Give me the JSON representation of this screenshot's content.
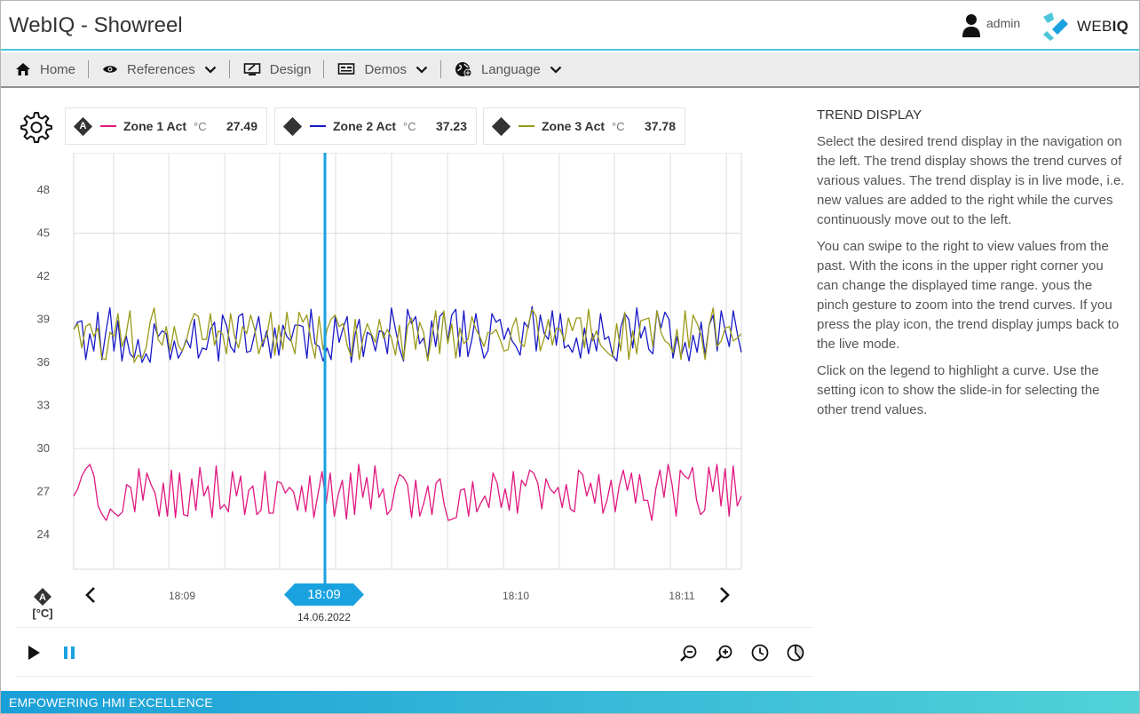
{
  "app": {
    "title": "WebIQ - Showreel"
  },
  "user": {
    "name": "admin",
    "icon": "user-icon"
  },
  "logo": {
    "text_light": "WEB",
    "text_bold": "IQ"
  },
  "nav": {
    "items": [
      {
        "label": "Home",
        "icon": "home-icon",
        "has_dropdown": false
      },
      {
        "label": "References",
        "icon": "eye-icon",
        "has_dropdown": true
      },
      {
        "label": "Design",
        "icon": "design-icon",
        "has_dropdown": false
      },
      {
        "label": "Demos",
        "icon": "monitor-icon",
        "has_dropdown": true
      },
      {
        "label": "Language",
        "icon": "globe-icon",
        "has_dropdown": true
      }
    ]
  },
  "legend": [
    {
      "badge": "A",
      "name": "Zone 1 Act",
      "unit": "°C",
      "value": "27.49",
      "color": "#e0187f"
    },
    {
      "badge": "",
      "name": "Zone 2 Act",
      "unit": "°C",
      "value": "37.23",
      "color": "#1a1ac8"
    },
    {
      "badge": "",
      "name": "Zone 3 Act",
      "unit": "°C",
      "value": "37.78",
      "color": "#9a9a1a"
    }
  ],
  "axis": {
    "badge": "A",
    "unit": "[°C]"
  },
  "cursor": {
    "time": "18:09",
    "date": "14.06.2022",
    "color": "#1aa2e0"
  },
  "chart_data": {
    "type": "line",
    "y_ticks": [
      "48",
      "45",
      "42",
      "39",
      "36",
      "33",
      "30",
      "27",
      "24"
    ],
    "ylim": [
      21.6,
      50.6
    ],
    "x_ticks": [
      "18:09",
      "18:10",
      "18:11"
    ],
    "grid": true,
    "series": [
      {
        "name": "Zone 1 Act",
        "color": "#e0187f",
        "values": [
          26.7,
          27.2,
          28.1,
          28.6,
          28.9,
          28.1,
          26.0,
          25.4,
          25.0,
          25.8,
          25.5,
          25.3,
          25.6,
          27.5,
          27.3,
          25.6,
          28.6,
          26.4,
          28.3,
          27.5,
          26.9,
          25.3,
          27.6,
          25.3,
          28.5,
          25.2,
          28.3,
          25.4,
          25.3,
          27.9,
          25.7,
          28.7,
          26.7,
          27.4,
          25.2,
          28.8,
          25.8,
          26.1,
          25.6,
          28.4,
          26.7,
          28.1,
          25.4,
          27.1,
          27.4,
          25.4,
          25.7,
          28.4,
          25.5,
          25.5,
          27.7,
          27.6,
          26.9,
          27.3,
          27.0,
          25.7,
          27.4,
          25.6,
          28.1,
          25.2,
          26.8,
          28.4,
          26.2,
          28.3,
          25.3,
          26.8,
          27.8,
          25.1,
          28.3,
          25.4,
          28.9,
          26.6,
          28.0,
          25.8,
          28.8,
          26.6,
          27.2,
          25.4,
          25.8,
          27.3,
          28.2,
          28.0,
          27.5,
          25.2,
          27.8,
          25.3,
          26.2,
          27.4,
          25.4,
          27.6,
          27.9,
          26.1,
          25.0,
          25.1,
          25.2,
          27.1,
          27.2,
          25.3,
          27.7,
          25.6,
          26.2,
          26.7,
          25.9,
          28.3,
          27.6,
          25.9,
          27.2,
          25.7,
          28.4,
          25.5,
          27.8,
          27.4,
          28.5,
          28.3,
          27.6,
          25.8,
          27.9,
          27.2,
          26.9,
          27.3,
          25.9,
          27.5,
          25.8,
          25.6,
          28.5,
          28.2,
          26.7,
          27.6,
          26.2,
          28.2,
          25.5,
          26.4,
          27.8,
          25.6,
          27.4,
          28.5,
          27.1,
          28.3,
          26.2,
          28.2,
          26.4,
          26.4,
          25.0,
          27.2,
          28.5,
          26.6,
          28.9,
          27.5,
          25.3,
          28.5,
          28.1,
          27.9,
          28.7,
          26.4,
          25.4,
          25.7,
          28.7,
          27.0,
          28.9,
          26.0,
          28.6,
          25.3,
          28.8,
          26.0,
          26.7
        ]
      },
      {
        "name": "Zone 2 Act",
        "color": "#1a1ac8",
        "values": [
          38.3,
          38.8,
          38.9,
          36.2,
          38.0,
          36.8,
          39.5,
          36.2,
          38.1,
          39.8,
          36.8,
          38.9,
          36.1,
          37.9,
          36.6,
          36.3,
          37.6,
          36.0,
          36.6,
          36.0,
          38.7,
          37.8,
          38.2,
          38.0,
          36.2,
          37.5,
          36.3,
          36.8,
          37.6,
          37.0,
          39.0,
          36.3,
          37.0,
          36.9,
          38.3,
          38.8,
          36.1,
          39.3,
          38.6,
          37.1,
          36.7,
          39.2,
          39.4,
          36.7,
          36.8,
          38.0,
          39.2,
          37.1,
          38.2,
          36.3,
          38.4,
          36.5,
          38.6,
          37.8,
          37.5,
          38.6,
          38.6,
          38.5,
          36.3,
          39.7,
          37.3,
          37.1,
          36.1,
          37.0,
          36.2,
          39.2,
          37.4,
          38.4,
          39.2,
          36.0,
          38.0,
          39.0,
          36.4,
          38.1,
          37.9,
          36.8,
          38.2,
          38.1,
          36.6,
          39.8,
          38.3,
          37.0,
          36.1,
          39.7,
          38.7,
          39.2,
          37.3,
          37.7,
          36.3,
          38.9,
          37.1,
          39.2,
          39.5,
          37.5,
          39.3,
          39.7,
          36.4,
          39.6,
          36.4,
          37.6,
          39.4,
          37.6,
          36.3,
          36.8,
          39.4,
          38.8,
          39.0,
          37.6,
          38.4,
          37.5,
          37.1,
          36.5,
          38.8,
          38.4,
          39.9,
          36.8,
          39.3,
          38.0,
          37.6,
          39.6,
          37.2,
          39.4,
          37.0,
          37.2,
          36.7,
          37.7,
          36.3,
          38.4,
          36.6,
          38.0,
          36.8,
          39.4,
          37.6,
          37.8,
          36.5,
          36.1,
          38.4,
          39.4,
          39.0,
          37.0,
          39.8,
          37.7,
          38.5,
          36.9,
          36.6,
          39.6,
          38.4,
          39.5,
          39.0,
          36.3,
          37.8,
          36.4,
          37.4,
          36.1,
          37.9,
          36.7,
          38.8,
          36.5,
          38.6,
          39.3,
          36.8,
          39.6,
          38.2,
          37.1,
          39.6,
          38.0,
          36.7
        ]
      },
      {
        "name": "Zone 3 Act",
        "color": "#9a9a1a",
        "values": [
          38.3,
          38.7,
          37.0,
          38.5,
          38.7,
          37.8,
          38.4,
          36.3,
          36.2,
          38.1,
          37.8,
          39.4,
          37.1,
          37.9,
          39.6,
          36.0,
          36.5,
          36.3,
          37.0,
          38.8,
          39.8,
          37.6,
          37.2,
          38.5,
          36.8,
          38.5,
          37.2,
          36.8,
          37.5,
          38.7,
          39.4,
          39.2,
          37.6,
          37.6,
          39.4,
          37.2,
          38.2,
          38.0,
          36.6,
          39.4,
          37.8,
          37.0,
          38.5,
          38.0,
          39.3,
          38.3,
          36.6,
          37.5,
          37.8,
          39.5,
          36.5,
          38.6,
          36.9,
          39.5,
          37.6,
          36.6,
          39.5,
          38.8,
          39.3,
          37.5,
          36.3,
          39.2,
          36.9,
          38.3,
          39.0,
          39.3,
          38.5,
          38.7,
          37.2,
          36.4,
          39.0,
          36.2,
          37.8,
          38.7,
          38.0,
          37.4,
          39.0,
          37.7,
          38.3,
          37.7,
          36.5,
          38.6,
          36.2,
          38.5,
          39.1,
          36.9,
          38.8,
          38.1,
          36.1,
          37.7,
          39.6,
          36.6,
          39.6,
          37.3,
          38.7,
          36.3,
          38.4,
          37.3,
          37.6,
          39.2,
          38.3,
          37.8,
          37.1,
          38.1,
          38.0,
          38.3,
          37.6,
          36.8,
          36.9,
          38.4,
          39.1,
          37.4,
          37.1,
          38.6,
          39.7,
          39.2,
          36.8,
          37.7,
          39.0,
          37.2,
          38.4,
          38.3,
          37.5,
          39.1,
          38.2,
          39.1,
          39.1,
          37.0,
          39.7,
          37.5,
          38.2,
          37.2,
          36.9,
          36.6,
          36.4,
          38.7,
          36.8,
          39.5,
          36.2,
          38.2,
          36.6,
          38.9,
          39.0,
          39.1,
          37.1,
          39.6,
          38.1,
          37.5,
          37.3,
          36.7,
          38.3,
          36.2,
          39.6,
          37.0,
          39.3,
          38.7,
          37.9,
          36.2,
          38.6,
          39.8,
          37.1,
          37.5,
          38.4,
          38.5,
          37.5,
          37.7,
          38.0
        ]
      }
    ]
  },
  "info": {
    "title": "TREND DISPLAY",
    "p1": "Select the desired trend display in the navigation on the left. The trend display shows the trend curves of various values. The trend display is in live mode, i.e. new values are added to the right while the curves continuously move out to the left.",
    "p2": "You can swipe to the right to view values from the past. With the icons in the upper right corner you can change the displayed time range. yous the pinch gesture to zoom into the trend curves. If you press the play icon, the trend display jumps back to the live mode.",
    "p3": "Click on the legend to highlight a curve. Use the setting icon to show the slide-in for selecting the other trend values."
  },
  "footer": {
    "text": "EMPOWERING HMI EXCELLENCE"
  }
}
